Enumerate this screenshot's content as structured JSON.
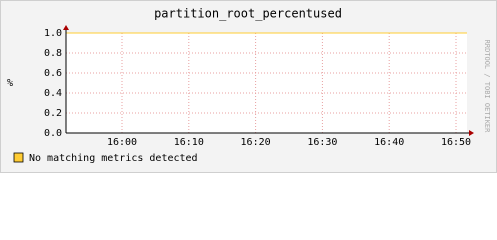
{
  "chart_data": {
    "type": "line",
    "title": "partition_root_percentused",
    "y_label": "%",
    "watermark": "RRDTOOL / TOBI OETIKER",
    "xticks": [
      "16:00",
      "16:10",
      "16:20",
      "16:30",
      "16:40",
      "16:50"
    ],
    "ylim": [
      0,
      1
    ],
    "yticks": [
      {
        "value": 0,
        "label": "0.0"
      },
      {
        "value": 0.2,
        "label": "0.2"
      },
      {
        "value": 0.4,
        "label": "0.4"
      },
      {
        "value": 0.6,
        "label": "0.6"
      },
      {
        "value": 0.8,
        "label": "0.8"
      },
      {
        "value": 1,
        "label": "1.0"
      }
    ],
    "grid": true,
    "series": [
      {
        "name": "No matching metrics detected",
        "color": "#ffcc33",
        "values": [
          1,
          1
        ]
      }
    ]
  }
}
